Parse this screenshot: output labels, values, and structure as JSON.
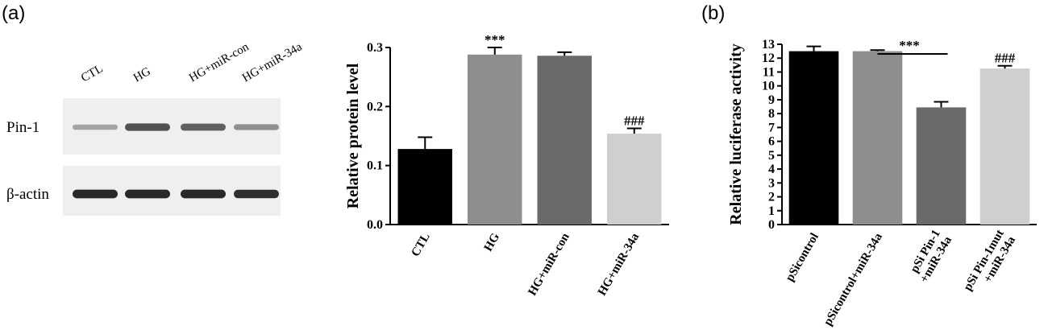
{
  "panel_a": {
    "letter": "(a)",
    "blot": {
      "lanes": [
        "CTL",
        "HG",
        "HG+miR-con",
        "HG+miR-34a"
      ],
      "rows": [
        {
          "label": "Pin-1",
          "intensity": [
            0.35,
            0.75,
            0.68,
            0.45
          ]
        },
        {
          "label": "β-actin",
          "intensity": [
            0.95,
            0.95,
            0.95,
            0.92
          ]
        }
      ]
    }
  },
  "panel_b": {
    "letter": "(b)"
  },
  "chart_data": [
    {
      "type": "bar",
      "categories": [
        "CTL",
        "HG",
        "HG+miR-con",
        "HG+miR-34a"
      ],
      "values": [
        0.128,
        0.288,
        0.286,
        0.154
      ],
      "errors": [
        0.02,
        0.012,
        0.006,
        0.009
      ],
      "colors": [
        "#000000",
        "#8e8e8e",
        "#6a6a6a",
        "#cfcfcf"
      ],
      "annotations": [
        "",
        "***",
        "",
        "###"
      ],
      "ylabel": "Relative protein level",
      "ylim": [
        0,
        0.3
      ],
      "yticks": [
        "0.0",
        "0.1",
        "0.2",
        "0.3"
      ],
      "ytick_values": [
        0,
        0.1,
        0.2,
        0.3
      ]
    },
    {
      "type": "bar",
      "categories": [
        "pSicontrol",
        "pSicontrol+miR-34a",
        "pSi Pin-1|+miR-34a",
        "pSi Pin-1mut|+miR-34a"
      ],
      "values": [
        12.5,
        12.5,
        8.45,
        11.25
      ],
      "errors": [
        0.35,
        0.08,
        0.4,
        0.2
      ],
      "colors": [
        "#000000",
        "#8e8e8e",
        "#6a6a6a",
        "#cfcfcf"
      ],
      "annotations": [
        "",
        "",
        "",
        "###"
      ],
      "bracket": {
        "from": 1,
        "to": 2,
        "label": "***"
      },
      "ylabel": "Relative luciferase activity",
      "ylim": [
        0,
        13
      ],
      "yticks": [
        "0",
        "1",
        "2",
        "3",
        "4",
        "5",
        "6",
        "7",
        "8",
        "9",
        "10",
        "11",
        "12",
        "13"
      ],
      "ytick_values": [
        0,
        1,
        2,
        3,
        4,
        5,
        6,
        7,
        8,
        9,
        10,
        11,
        12,
        13
      ]
    }
  ]
}
